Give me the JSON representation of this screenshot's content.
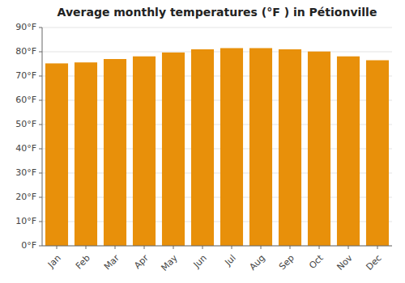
{
  "chart_data": {
    "type": "bar",
    "title": "Average monthly temperatures (°F ) in Pétionville",
    "categories": [
      "Jan",
      "Feb",
      "Mar",
      "Apr",
      "May",
      "Jun",
      "Jul",
      "Aug",
      "Sep",
      "Oct",
      "Nov",
      "Dec"
    ],
    "values": [
      75.2,
      75.6,
      77.0,
      78.1,
      79.7,
      81.0,
      81.5,
      81.5,
      81.0,
      80.1,
      78.1,
      76.5
    ],
    "color": "#E8900A",
    "ylim": [
      0,
      90
    ],
    "yticks": [
      {
        "value": 0,
        "label": "0°F"
      },
      {
        "value": 10,
        "label": "10°F"
      },
      {
        "value": 20,
        "label": "20°F"
      },
      {
        "value": 30,
        "label": "30°F"
      },
      {
        "value": 40,
        "label": "40°F"
      },
      {
        "value": 50,
        "label": "50°F"
      },
      {
        "value": 60,
        "label": "60°F"
      },
      {
        "value": 70,
        "label": "70°F"
      },
      {
        "value": 80,
        "label": "80°F"
      },
      {
        "value": 90,
        "label": "90°F"
      }
    ],
    "grid": true
  }
}
